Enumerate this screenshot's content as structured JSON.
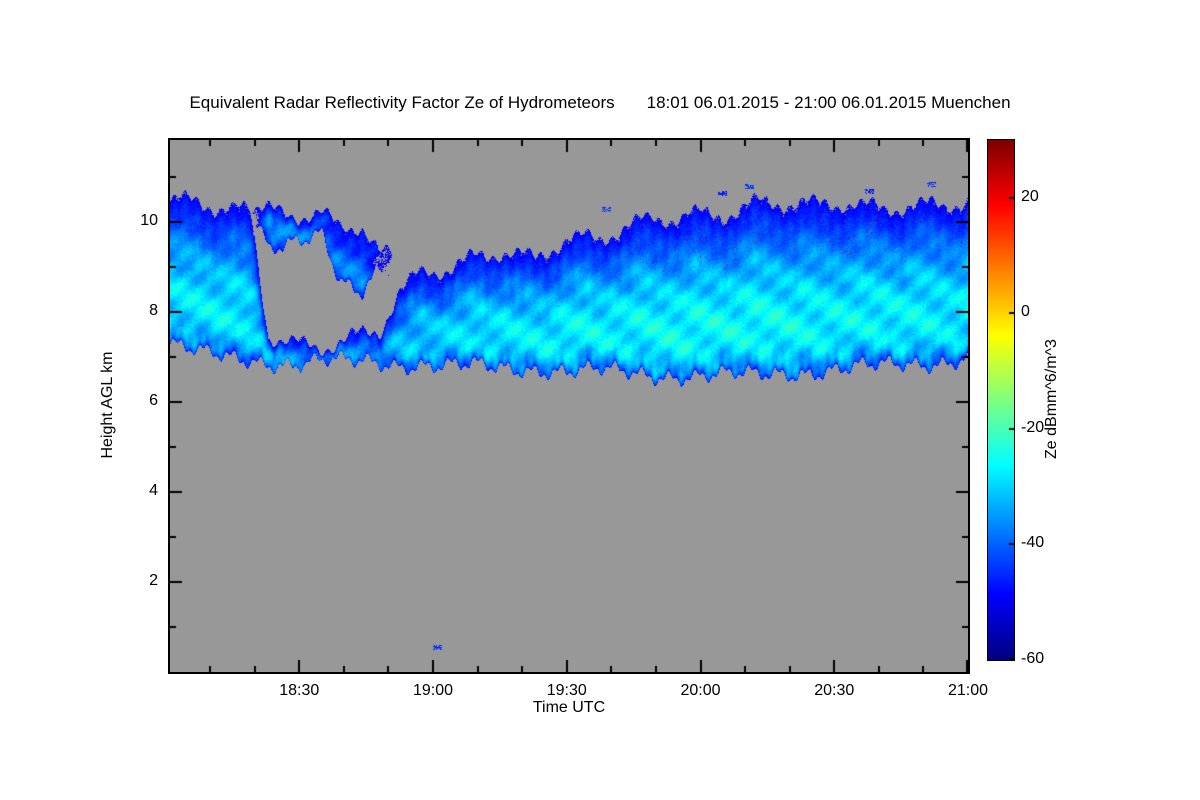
{
  "colors": {
    "page_bg": "#ffffff",
    "plot_bg": "#989898",
    "axis": "#000000",
    "text": "#000000"
  },
  "chart_data": {
    "type": "heatmap",
    "title": "Equivalent Radar Reflectivity Factor Ze of Hydrometeors",
    "time_range_label": "18:01 06.01.2015 - 21:00 06.01.2015 Muenchen",
    "xlabel": "Time UTC",
    "ylabel": "Height AGL km",
    "x_start": "18:01",
    "x_end": "21:00",
    "x_total_min": 179,
    "x_ticks": [
      {
        "label": "18:30",
        "min": 29
      },
      {
        "label": "19:00",
        "min": 59
      },
      {
        "label": "19:30",
        "min": 89
      },
      {
        "label": "20:00",
        "min": 119
      },
      {
        "label": "20:30",
        "min": 149
      },
      {
        "label": "21:00",
        "min": 179
      }
    ],
    "x_minor_step_min": 10,
    "y_range": [
      0,
      11.83
    ],
    "y_ticks": [
      2,
      4,
      6,
      8,
      10
    ],
    "y_minor_ticks": [
      1,
      3,
      5,
      7,
      9,
      11
    ],
    "colorbar": {
      "label": "Ze dBmm^6/m^3",
      "ticks": [
        20,
        0,
        -20,
        -40,
        -60
      ],
      "range": [
        -60,
        30
      ],
      "colormap": "jet"
    },
    "cloud_keyframes": [
      {
        "m": 0,
        "bands": [
          [
            7.3,
            10.4,
            -29
          ],
          [
            10.4,
            10.4,
            -60
          ]
        ]
      },
      {
        "m": 6,
        "bands": [
          [
            7.1,
            10.35,
            -28
          ],
          [
            10.4,
            10.4,
            -60
          ]
        ]
      },
      {
        "m": 12,
        "bands": [
          [
            7.0,
            10.3,
            -28
          ],
          [
            10.35,
            10.35,
            -60
          ]
        ]
      },
      {
        "m": 18,
        "bands": [
          [
            6.95,
            10.25,
            -29
          ],
          [
            10.35,
            10.35,
            -60
          ]
        ]
      },
      {
        "m": 22,
        "bands": [
          [
            6.9,
            7.6,
            -33
          ],
          [
            9.5,
            10.35,
            -36
          ]
        ]
      },
      {
        "m": 28,
        "bands": [
          [
            6.85,
            7.4,
            -36
          ],
          [
            9.6,
            10.3,
            -38
          ]
        ]
      },
      {
        "m": 34,
        "bands": [
          [
            6.9,
            7.3,
            -38
          ],
          [
            9.7,
            10.25,
            -41
          ]
        ]
      },
      {
        "m": 38,
        "bands": [
          [
            6.9,
            7.35,
            -38
          ],
          [
            8.6,
            9.9,
            -39
          ]
        ]
      },
      {
        "m": 43,
        "bands": [
          [
            6.9,
            7.45,
            -36
          ],
          [
            8.4,
            9.9,
            -38
          ]
        ]
      },
      {
        "m": 47,
        "bands": [
          [
            6.9,
            7.5,
            -35
          ],
          [
            9.0,
            9.2,
            -48
          ]
        ]
      },
      {
        "m": 51,
        "bands": [
          [
            6.85,
            8.3,
            -33
          ],
          [
            9.1,
            9.1,
            -60
          ]
        ]
      },
      {
        "m": 56,
        "bands": [
          [
            6.85,
            8.8,
            -31
          ],
          [
            9.1,
            9.1,
            -60
          ]
        ]
      },
      {
        "m": 62,
        "bands": [
          [
            6.8,
            9.0,
            -30
          ],
          [
            9.1,
            9.1,
            -60
          ]
        ]
      },
      {
        "m": 68,
        "bands": [
          [
            6.8,
            9.3,
            -29
          ],
          [
            9.2,
            9.2,
            -60
          ]
        ]
      },
      {
        "m": 75,
        "bands": [
          [
            6.75,
            9.5,
            -28
          ],
          [
            9.5,
            9.5,
            -60
          ]
        ]
      },
      {
        "m": 82,
        "bands": [
          [
            6.75,
            9.2,
            -28
          ],
          [
            9.5,
            9.5,
            -60
          ]
        ]
      },
      {
        "m": 89,
        "bands": [
          [
            6.7,
            9.6,
            -27
          ],
          [
            9.6,
            9.6,
            -60
          ]
        ]
      },
      {
        "m": 96,
        "bands": [
          [
            6.7,
            9.5,
            -27
          ],
          [
            9.6,
            9.6,
            -60
          ]
        ]
      },
      {
        "m": 103,
        "bands": [
          [
            6.65,
            9.9,
            -27
          ],
          [
            9.9,
            9.9,
            -60
          ]
        ]
      },
      {
        "m": 110,
        "bands": [
          [
            6.6,
            10.15,
            -26
          ],
          [
            10.1,
            10.1,
            -60
          ]
        ]
      },
      {
        "m": 117,
        "bands": [
          [
            6.6,
            10.3,
            -26
          ],
          [
            10.3,
            10.3,
            -60
          ]
        ]
      },
      {
        "m": 124,
        "bands": [
          [
            6.6,
            10.25,
            -26
          ],
          [
            10.3,
            10.3,
            -60
          ]
        ]
      },
      {
        "m": 131,
        "bands": [
          [
            6.6,
            10.4,
            -26
          ],
          [
            10.4,
            10.4,
            -60
          ]
        ]
      },
      {
        "m": 138,
        "bands": [
          [
            6.65,
            10.35,
            -26
          ],
          [
            10.4,
            10.4,
            -60
          ]
        ]
      },
      {
        "m": 145,
        "bands": [
          [
            6.7,
            10.3,
            -27
          ],
          [
            10.3,
            10.3,
            -60
          ]
        ]
      },
      {
        "m": 152,
        "bands": [
          [
            6.75,
            10.45,
            -27
          ],
          [
            10.45,
            10.45,
            -60
          ]
        ]
      },
      {
        "m": 159,
        "bands": [
          [
            6.8,
            10.4,
            -27
          ],
          [
            10.4,
            10.4,
            -60
          ]
        ]
      },
      {
        "m": 166,
        "bands": [
          [
            6.85,
            10.5,
            -27
          ],
          [
            10.5,
            10.5,
            -60
          ]
        ]
      },
      {
        "m": 173,
        "bands": [
          [
            6.9,
            10.4,
            -28
          ],
          [
            10.4,
            10.4,
            -60
          ]
        ]
      },
      {
        "m": 179,
        "bands": [
          [
            7.0,
            10.45,
            -28
          ],
          [
            10.45,
            10.45,
            -60
          ]
        ]
      }
    ],
    "specks": [
      {
        "m": 60,
        "km": 0.55,
        "value": -44
      },
      {
        "m": 98,
        "km": 10.3,
        "value": -44
      },
      {
        "m": 124,
        "km": 10.65,
        "value": -46
      },
      {
        "m": 130,
        "km": 10.8,
        "value": -44
      },
      {
        "m": 157,
        "km": 10.7,
        "value": -47
      },
      {
        "m": 171,
        "km": 10.85,
        "value": -45
      }
    ]
  }
}
